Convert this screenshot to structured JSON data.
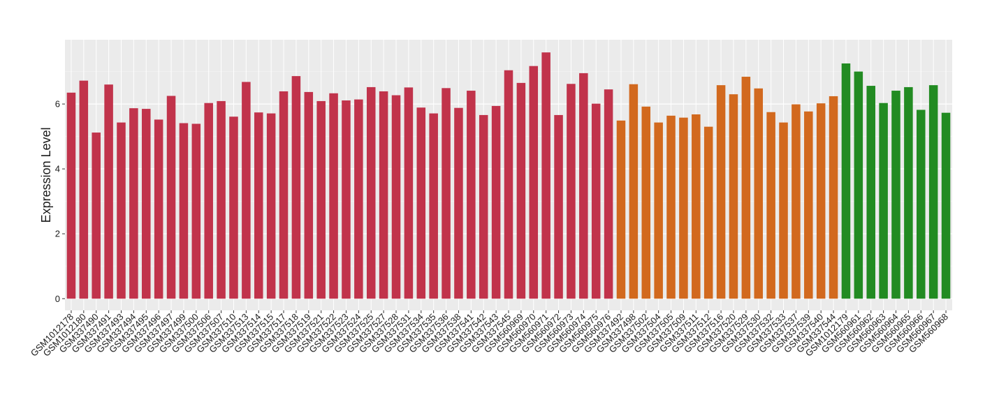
{
  "chart_data": {
    "type": "bar",
    "y_label": "Expression Level",
    "categories": [
      "GSM1012178",
      "GSM1012180",
      "GSM337490",
      "GSM337491",
      "GSM337493",
      "GSM337494",
      "GSM337495",
      "GSM337496",
      "GSM337497",
      "GSM337499",
      "GSM337500",
      "GSM337506",
      "GSM337507",
      "GSM337510",
      "GSM337513",
      "GSM337514",
      "GSM337515",
      "GSM337517",
      "GSM337518",
      "GSM337519",
      "GSM337521",
      "GSM337522",
      "GSM337523",
      "GSM337524",
      "GSM337525",
      "GSM337527",
      "GSM337528",
      "GSM337531",
      "GSM337534",
      "GSM337535",
      "GSM337536",
      "GSM337538",
      "GSM337541",
      "GSM337542",
      "GSM337543",
      "GSM337545",
      "GSM560969",
      "GSM560970",
      "GSM560971",
      "GSM560972",
      "GSM560973",
      "GSM560974",
      "GSM560975",
      "GSM560976",
      "GSM337492",
      "GSM337498",
      "GSM337502",
      "GSM337504",
      "GSM337505",
      "GSM337509",
      "GSM337511",
      "GSM337512",
      "GSM337516",
      "GSM337520",
      "GSM337529",
      "GSM337530",
      "GSM337532",
      "GSM337533",
      "GSM337537",
      "GSM337539",
      "GSM337540",
      "GSM337544",
      "GSM1012179",
      "GSM560961",
      "GSM560962",
      "GSM560963",
      "GSM560964",
      "GSM560965",
      "GSM560966",
      "GSM560967",
      "GSM560968"
    ],
    "values": [
      6.35,
      6.72,
      5.12,
      6.6,
      5.43,
      5.87,
      5.85,
      5.52,
      6.25,
      5.41,
      5.39,
      6.03,
      6.09,
      5.61,
      6.68,
      5.74,
      5.71,
      6.39,
      6.86,
      6.37,
      6.09,
      6.33,
      6.11,
      6.14,
      6.52,
      6.39,
      6.27,
      6.51,
      5.89,
      5.71,
      6.49,
      5.88,
      6.41,
      5.66,
      5.94,
      7.04,
      6.65,
      7.17,
      7.59,
      5.66,
      6.62,
      6.95,
      6.01,
      6.45,
      5.49,
      6.61,
      5.92,
      5.43,
      5.64,
      5.58,
      5.68,
      5.3,
      6.58,
      6.3,
      6.84,
      6.48,
      5.75,
      5.43,
      5.99,
      5.77,
      6.02,
      6.24,
      7.25,
      7.0,
      6.56,
      6.03,
      6.41,
      6.52,
      5.82,
      6.58,
      5.73
    ],
    "colors": [
      "#c1334b",
      "#c1334b",
      "#c1334b",
      "#c1334b",
      "#c1334b",
      "#c1334b",
      "#c1334b",
      "#c1334b",
      "#c1334b",
      "#c1334b",
      "#c1334b",
      "#c1334b",
      "#c1334b",
      "#c1334b",
      "#c1334b",
      "#c1334b",
      "#c1334b",
      "#c1334b",
      "#c1334b",
      "#c1334b",
      "#c1334b",
      "#c1334b",
      "#c1334b",
      "#c1334b",
      "#c1334b",
      "#c1334b",
      "#c1334b",
      "#c1334b",
      "#c1334b",
      "#c1334b",
      "#c1334b",
      "#c1334b",
      "#c1334b",
      "#c1334b",
      "#c1334b",
      "#c1334b",
      "#c1334b",
      "#c1334b",
      "#c1334b",
      "#c1334b",
      "#c1334b",
      "#c1334b",
      "#c1334b",
      "#c1334b",
      "#d2691e",
      "#d2691e",
      "#d2691e",
      "#d2691e",
      "#d2691e",
      "#d2691e",
      "#d2691e",
      "#d2691e",
      "#d2691e",
      "#d2691e",
      "#d2691e",
      "#d2691e",
      "#d2691e",
      "#d2691e",
      "#d2691e",
      "#d2691e",
      "#d2691e",
      "#d2691e",
      "#228b22",
      "#228b22",
      "#228b22",
      "#228b22",
      "#228b22",
      "#228b22",
      "#228b22",
      "#228b22",
      "#228b22"
    ],
    "ylim": [
      -0.36,
      7.98
    ],
    "yticks": [
      0,
      2,
      4,
      6
    ],
    "grid": true
  }
}
